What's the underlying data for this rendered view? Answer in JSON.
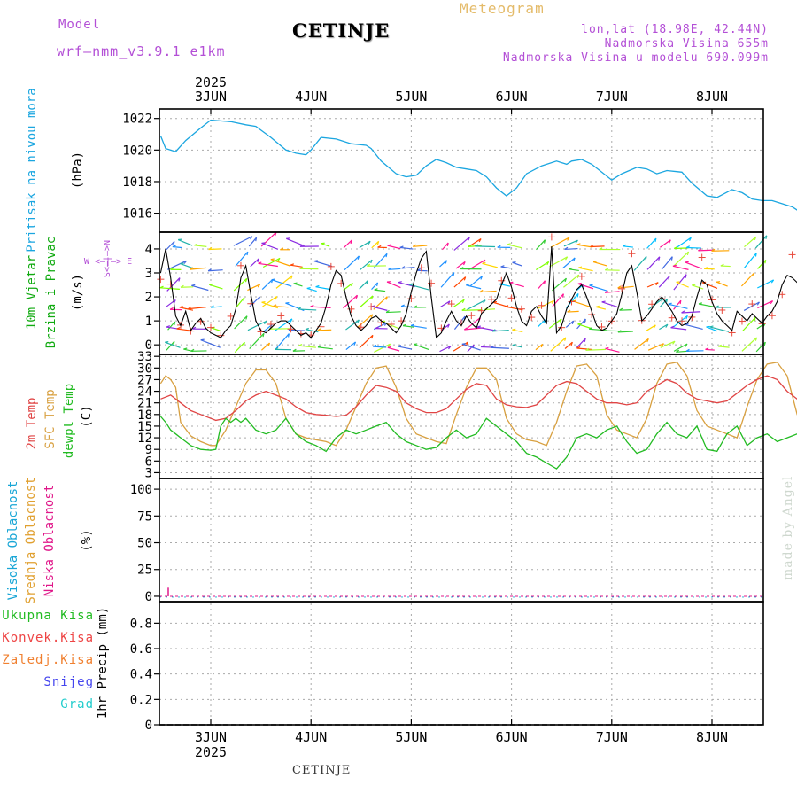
{
  "header": {
    "model_label": "Model",
    "model_name": "wrf—nmm_v3.9.1 e1km",
    "station": "CETINJE",
    "meteogram": "Meteogram",
    "coords": "lon,lat (18.98E, 42.44N)",
    "elevation": "Nadmorska Visina 655m",
    "elevation_model": "Nadmorska Visina u modelu 690.099m"
  },
  "footer": {
    "station": "CETINJE",
    "credit": "made by Angel"
  },
  "axis": {
    "year": "2025",
    "days": [
      "3JUN",
      "4JUN",
      "5JUN",
      "6JUN",
      "7JUN",
      "8JUN"
    ]
  },
  "colors": {
    "pressure": "#1ba6e0",
    "wind_speed": "#000000",
    "gust": "#e8493b",
    "t2m": "#e04545",
    "sfc": "#d8a040",
    "dewpt": "#22bb22",
    "high_cloud": "#19a6d6",
    "mid_cloud": "#e0a030",
    "low_cloud": "#e0188a",
    "total_precip": "#22bb22",
    "conv_precip": "#ee4444",
    "frz_precip": "#f08030",
    "snow": "#4444ee",
    "hail": "#22cccc"
  },
  "panels": {
    "pressure": {
      "label": "Pritisak na nivou mora",
      "unit": "(hPa)",
      "ticks": [
        "1016",
        "1018",
        "1020",
        "1022"
      ]
    },
    "wind": {
      "label1": "10m Vjetar",
      "label2": "Brzina i Pravac",
      "unit": "(m/s)",
      "compass": "W <—|—> E",
      "compass_ns": "S<—|—>N",
      "ticks": [
        "0",
        "1",
        "2",
        "3",
        "4"
      ]
    },
    "temp": {
      "label_2m": "2m Temp",
      "label_sfc": "SFC Temp",
      "label_dew": "dewpt Temp",
      "unit": "(C)",
      "ticks": [
        "3",
        "6",
        "9",
        "12",
        "15",
        "18",
        "21",
        "24",
        "27",
        "30",
        "33"
      ]
    },
    "cloud": {
      "label_high": "Visoka Oblacnost",
      "label_mid": "Srednja Oblacnost",
      "label_low": "Niska Oblacnost",
      "unit": "(%)",
      "ticks": [
        "0",
        "25",
        "50",
        "75",
        "100"
      ]
    },
    "precip": {
      "unit_label": "1hr Precip (mm)",
      "ticks": [
        "0",
        "0.2",
        "0.4",
        "0.6",
        "0.8"
      ],
      "legend": [
        "Ukupna Kisa",
        "Konvek.Kisa",
        "Zaledj.Kisa",
        "Snijeg",
        "Grad"
      ]
    }
  },
  "chart_data": [
    {
      "type": "line",
      "ylabel": "Pritisak na nivou mora (hPa)",
      "x_unit": "days since 3JUN 00:00",
      "ylim": [
        1014.8,
        1022.6
      ],
      "series": [
        {
          "name": "Pritisak na nivou mora",
          "x": [
            -0.5,
            -0.45,
            -0.35,
            -0.25,
            -0.1,
            0,
            0.2,
            0.35,
            0.45,
            0.6,
            0.75,
            0.85,
            0.95,
            1.0,
            1.1,
            1.25,
            1.4,
            1.55,
            1.6,
            1.7,
            1.85,
            1.95,
            2.05,
            2.15,
            2.25,
            2.3,
            2.35,
            2.45,
            2.55,
            2.65,
            2.75,
            2.85,
            2.95,
            3.05,
            3.15,
            3.3,
            3.45,
            3.55,
            3.6,
            3.7,
            3.8,
            3.9,
            4.0,
            4.1,
            4.25,
            4.35,
            4.45,
            4.55,
            4.7,
            4.8,
            4.95,
            5.05,
            5.2,
            5.3,
            5.4,
            5.5,
            5.6,
            5.7,
            5.8,
            5.95,
            6.1
          ],
          "y": [
            1020.9,
            1020.1,
            1019.9,
            1020.6,
            1021.4,
            1021.9,
            1021.8,
            1021.6,
            1021.5,
            1020.8,
            1020.0,
            1019.8,
            1019.7,
            1020.0,
            1020.8,
            1020.7,
            1020.4,
            1020.3,
            1020.1,
            1019.3,
            1018.5,
            1018.3,
            1018.4,
            1019.0,
            1019.4,
            1019.3,
            1019.2,
            1018.9,
            1018.8,
            1018.7,
            1018.3,
            1017.6,
            1017.1,
            1017.6,
            1018.5,
            1019.0,
            1019.3,
            1019.1,
            1019.3,
            1019.4,
            1019.1,
            1018.6,
            1018.1,
            1018.5,
            1018.9,
            1018.8,
            1018.5,
            1018.7,
            1018.6,
            1017.9,
            1017.1,
            1017.0,
            1017.5,
            1017.3,
            1016.9,
            1016.8,
            1016.8,
            1016.6,
            1016.4,
            1015.8,
            1015.0
          ]
        }
      ]
    },
    {
      "type": "line",
      "ylabel": "10m Vjetar Brzina i Pravac (m/s)",
      "x_unit": "days since 3JUN 00:00",
      "ylim": [
        -0.4,
        4.7
      ],
      "series": [
        {
          "name": "Brzina",
          "x": [
            -0.5,
            -0.45,
            -0.4,
            -0.35,
            -0.3,
            -0.25,
            -0.2,
            -0.15,
            -0.1,
            -0.05,
            0,
            0.05,
            0.1,
            0.15,
            0.2,
            0.25,
            0.3,
            0.35,
            0.4,
            0.45,
            0.5,
            0.55,
            0.6,
            0.65,
            0.7,
            0.75,
            0.8,
            0.85,
            0.9,
            0.95,
            1.0,
            1.05,
            1.1,
            1.15,
            1.2,
            1.25,
            1.3,
            1.35,
            1.4,
            1.45,
            1.5,
            1.55,
            1.6,
            1.65,
            1.7,
            1.75,
            1.8,
            1.85,
            1.9,
            1.95,
            2.0,
            2.05,
            2.1,
            2.15,
            2.2,
            2.25,
            2.3,
            2.35,
            2.4,
            2.45,
            2.5,
            2.55,
            2.6,
            2.65,
            2.7,
            2.75,
            2.8,
            2.85,
            2.9,
            2.95,
            3.0,
            3.05,
            3.1,
            3.15,
            3.2,
            3.25,
            3.3,
            3.35,
            3.4,
            3.45,
            3.5,
            3.55,
            3.6,
            3.65,
            3.7,
            3.75,
            3.8,
            3.85,
            3.9,
            3.95,
            4.0,
            4.05,
            4.1,
            4.15,
            4.2,
            4.25,
            4.3,
            4.35,
            4.4,
            4.45,
            4.5,
            4.55,
            4.6,
            4.65,
            4.7,
            4.75,
            4.8,
            4.85,
            4.9,
            4.95,
            5.0,
            5.05,
            5.1,
            5.15,
            5.2,
            5.25,
            5.3,
            5.35,
            5.4,
            5.45,
            5.5,
            5.55,
            5.6,
            5.65,
            5.7,
            5.75,
            5.8,
            5.85,
            5.9,
            5.95,
            6.0,
            6.05,
            6.1
          ],
          "y": [
            3.0,
            4.0,
            2.8,
            1.2,
            0.8,
            1.4,
            0.6,
            0.9,
            1.1,
            0.7,
            0.5,
            0.4,
            0.3,
            0.6,
            0.8,
            1.5,
            2.8,
            3.3,
            2.1,
            1.0,
            0.6,
            0.5,
            0.7,
            0.9,
            1.0,
            1.0,
            0.8,
            0.6,
            0.4,
            0.5,
            0.3,
            0.6,
            0.9,
            1.6,
            2.5,
            3.1,
            2.9,
            2.0,
            1.2,
            0.8,
            0.6,
            0.8,
            1.1,
            1.2,
            1.0,
            0.9,
            0.7,
            0.5,
            0.8,
            1.3,
            2.2,
            3.0,
            3.6,
            3.9,
            2.0,
            0.3,
            0.5,
            1.0,
            1.4,
            1.0,
            0.8,
            1.2,
            0.9,
            0.7,
            1.3,
            1.5,
            1.7,
            1.9,
            2.5,
            3.0,
            2.4,
            1.6,
            1.0,
            0.8,
            1.4,
            1.6,
            1.2,
            0.9,
            4.1,
            0.5,
            0.8,
            1.5,
            1.9,
            2.3,
            2.5,
            2.0,
            1.4,
            0.8,
            0.6,
            0.7,
            1.0,
            1.3,
            2.1,
            3.0,
            3.3,
            2.2,
            1.0,
            1.2,
            1.5,
            1.8,
            2.0,
            1.7,
            1.4,
            1.0,
            0.8,
            0.9,
            1.2,
            2.0,
            2.7,
            2.5,
            1.8,
            1.3,
            1.0,
            0.8,
            0.6,
            1.4,
            1.2,
            1.0,
            1.3,
            1.1,
            0.9,
            1.2,
            1.4,
            1.8,
            2.5,
            2.9,
            2.8,
            2.6,
            2.8,
            3.0,
            2.9,
            3.1,
            3.0
          ]
        }
      ]
    },
    {
      "type": "line",
      "ylabel": "Temp (C)",
      "x_unit": "days since 3JUN 00:00",
      "ylim": [
        1.5,
        33.5
      ],
      "series": [
        {
          "name": "2m Temp",
          "x": [
            -0.5,
            -0.4,
            -0.3,
            -0.2,
            -0.1,
            0,
            0.05,
            0.15,
            0.25,
            0.35,
            0.45,
            0.55,
            0.65,
            0.75,
            0.85,
            0.95,
            1.05,
            1.15,
            1.25,
            1.35,
            1.45,
            1.55,
            1.65,
            1.75,
            1.85,
            1.95,
            2.05,
            2.15,
            2.25,
            2.35,
            2.45,
            2.55,
            2.65,
            2.75,
            2.85,
            2.95,
            3.05,
            3.15,
            3.25,
            3.35,
            3.45,
            3.55,
            3.65,
            3.75,
            3.85,
            3.95,
            4.05,
            4.15,
            4.25,
            4.35,
            4.45,
            4.55,
            4.65,
            4.75,
            4.85,
            4.95,
            5.05,
            5.15,
            5.25,
            5.35,
            5.45,
            5.55,
            5.65,
            5.75,
            5.85,
            5.95,
            6.05,
            6.1
          ],
          "y": [
            22,
            23,
            21,
            19,
            18,
            17,
            16.5,
            17,
            19,
            21.5,
            23,
            24,
            23,
            22,
            20,
            18.5,
            18,
            17.8,
            17.5,
            17.8,
            20,
            23,
            25.5,
            25,
            24,
            21,
            19.5,
            18.5,
            18.5,
            19.5,
            22,
            24.5,
            26,
            25.5,
            22,
            20.5,
            20,
            19.8,
            20.5,
            23,
            25.5,
            26.5,
            26,
            24,
            22,
            21,
            21,
            20.5,
            21,
            24,
            25.5,
            27,
            26,
            23.5,
            22,
            21.5,
            21,
            21.5,
            23.5,
            25.5,
            27,
            28,
            27,
            24,
            22,
            22,
            22,
            28.5
          ]
        },
        {
          "name": "SFC Temp",
          "x": [
            -0.5,
            -0.45,
            -0.4,
            -0.35,
            -0.3,
            -0.2,
            -0.1,
            0,
            0.05,
            0.15,
            0.25,
            0.35,
            0.45,
            0.55,
            0.65,
            0.75,
            0.85,
            0.95,
            1.05,
            1.15,
            1.25,
            1.35,
            1.45,
            1.55,
            1.65,
            1.75,
            1.85,
            1.95,
            2.05,
            2.15,
            2.25,
            2.35,
            2.45,
            2.55,
            2.65,
            2.75,
            2.85,
            2.95,
            3.05,
            3.15,
            3.25,
            3.35,
            3.45,
            3.55,
            3.65,
            3.75,
            3.85,
            3.95,
            4.05,
            4.15,
            4.25,
            4.35,
            4.45,
            4.55,
            4.65,
            4.75,
            4.85,
            4.95,
            5.05,
            5.15,
            5.25,
            5.35,
            5.45,
            5.55,
            5.65,
            5.75,
            5.85,
            5.95,
            6.05,
            6.1
          ],
          "y": [
            26,
            28,
            27,
            25,
            16,
            12.5,
            11,
            10,
            10,
            14,
            20,
            26,
            29.5,
            29.5,
            26,
            17,
            13,
            12,
            11.5,
            11,
            10,
            14,
            20,
            26,
            30,
            30.5,
            25,
            17,
            13,
            12,
            11,
            10.5,
            18,
            25,
            30,
            30,
            27,
            17,
            13,
            11.5,
            11,
            10,
            16,
            24,
            30.5,
            31,
            28,
            18,
            14,
            13,
            12,
            17,
            26,
            31,
            31.5,
            28,
            19,
            15,
            14,
            13,
            12,
            20,
            27,
            31,
            31.5,
            28,
            18,
            14,
            31.5,
            32
          ]
        },
        {
          "name": "dewpt Temp",
          "x": [
            -0.5,
            -0.45,
            -0.4,
            -0.35,
            -0.3,
            -0.25,
            -0.2,
            -0.1,
            0,
            0.05,
            0.1,
            0.15,
            0.2,
            0.25,
            0.3,
            0.35,
            0.45,
            0.55,
            0.65,
            0.75,
            0.85,
            0.95,
            1.05,
            1.15,
            1.25,
            1.35,
            1.45,
            1.55,
            1.65,
            1.75,
            1.85,
            1.95,
            2.05,
            2.15,
            2.25,
            2.35,
            2.45,
            2.55,
            2.65,
            2.75,
            2.85,
            2.95,
            3.05,
            3.15,
            3.25,
            3.35,
            3.45,
            3.55,
            3.65,
            3.75,
            3.85,
            3.95,
            4.05,
            4.15,
            4.25,
            4.35,
            4.45,
            4.55,
            4.65,
            4.75,
            4.85,
            4.95,
            5.05,
            5.15,
            5.25,
            5.35,
            5.45,
            5.55,
            5.65,
            5.75,
            5.85,
            5.95,
            6.05,
            6.1
          ],
          "y": [
            17.5,
            16,
            14,
            13,
            12,
            11,
            10,
            9,
            8.8,
            9,
            15,
            17,
            16,
            17,
            16,
            17,
            14,
            13,
            14,
            17,
            13,
            11,
            10,
            8.5,
            12,
            14,
            13,
            14,
            15,
            16,
            13,
            11,
            10,
            9,
            9.5,
            12,
            14,
            12,
            13,
            17,
            15,
            13,
            11,
            8,
            7,
            5.5,
            4,
            7,
            12,
            13,
            12,
            14,
            15,
            11,
            8,
            9,
            13,
            16,
            13,
            12,
            15,
            9,
            8.5,
            13,
            15,
            10,
            12,
            13,
            11,
            12,
            13,
            14,
            13,
            14
          ]
        }
      ]
    },
    {
      "type": "bar",
      "ylabel": "Oblacnost (%)",
      "ylim": [
        -5,
        110
      ],
      "series": [
        {
          "name": "Visoka Oblacnost",
          "values": [
            0
          ]
        },
        {
          "name": "Srednja Oblacnost",
          "values": [
            0
          ]
        },
        {
          "name": "Niska Oblacnost",
          "values": [
            8,
            0
          ]
        }
      ]
    },
    {
      "type": "bar",
      "ylabel": "1hr Precip (mm)",
      "ylim": [
        0,
        0.97
      ],
      "series": [
        {
          "name": "Ukupna Kisa",
          "values": [
            0
          ]
        },
        {
          "name": "Konvek.Kisa",
          "values": [
            0
          ]
        },
        {
          "name": "Zaledj.Kisa",
          "values": [
            0
          ]
        },
        {
          "name": "Snijeg",
          "values": [
            0
          ]
        },
        {
          "name": "Grad",
          "values": [
            0
          ]
        }
      ]
    }
  ]
}
